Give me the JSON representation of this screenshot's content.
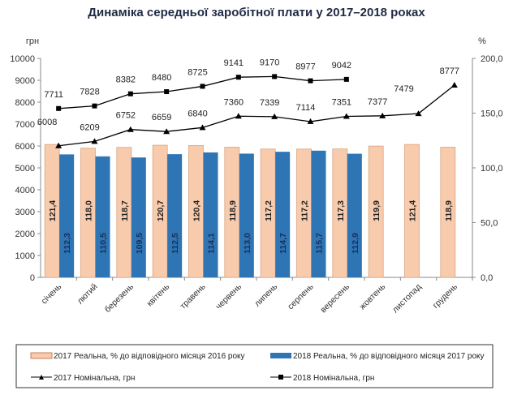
{
  "chart_data": {
    "type": "bar+line",
    "title": "Динаміка середньої заробітної плати у 2017–2018 роках",
    "ylabel_left": "грн",
    "ylabel_right": "%",
    "ylim_left": [
      0,
      10000
    ],
    "ylim_right": [
      0,
      200
    ],
    "yticks_left": [
      "0",
      "1000",
      "2000",
      "3000",
      "4000",
      "5000",
      "6000",
      "7000",
      "8000",
      "9000",
      "10000"
    ],
    "yticks_right": [
      "0,0",
      "50,0",
      "100,0",
      "150,0",
      "200,0"
    ],
    "categories": [
      "січень",
      "лютий",
      "березень",
      "квітень",
      "травень",
      "червень",
      "липень",
      "серпень",
      "вересень",
      "жовтень",
      "листопад",
      "грудень"
    ],
    "grid": false,
    "legend_position": "bottom",
    "series": [
      {
        "name": "2017 Реальна, % до відповідного місяця 2016 року",
        "type": "bar",
        "axis": "right",
        "color": "#F8CBAD",
        "values": [
          121.4,
          118.0,
          118.7,
          120.7,
          120.4,
          118.9,
          117.2,
          117.2,
          117.3,
          119.9,
          121.4,
          118.9
        ],
        "labels": [
          "121,4",
          "118,0",
          "118,7",
          "120,7",
          "120,4",
          "118,9",
          "117,2",
          "117,2",
          "117,3",
          "119,9",
          "121,4",
          "118,9"
        ]
      },
      {
        "name": "2018 Реальна, % до відповідного місяця 2017 року",
        "type": "bar",
        "axis": "right",
        "color": "#2E75B6",
        "values": [
          112.3,
          110.5,
          109.5,
          112.5,
          114.1,
          113.0,
          114.7,
          115.7,
          112.9,
          null,
          null,
          null
        ],
        "labels": [
          "112,3",
          "110,5",
          "109,5",
          "112,5",
          "114,1",
          "113,0",
          "114,7",
          "115,7",
          "112,9",
          null,
          null,
          null
        ]
      },
      {
        "name": "2017 Номінальна, грн",
        "type": "line",
        "axis": "left",
        "marker": "triangle",
        "color": "#000000",
        "values": [
          6008,
          6209,
          6752,
          6659,
          6840,
          7360,
          7339,
          7114,
          7351,
          7377,
          7479,
          8777
        ]
      },
      {
        "name": "2018 Номінальна, грн",
        "type": "line",
        "axis": "left",
        "marker": "square",
        "color": "#000000",
        "values": [
          7711,
          7828,
          8382,
          8480,
          8725,
          9141,
          9170,
          8977,
          9042,
          null,
          null,
          null
        ]
      }
    ]
  }
}
